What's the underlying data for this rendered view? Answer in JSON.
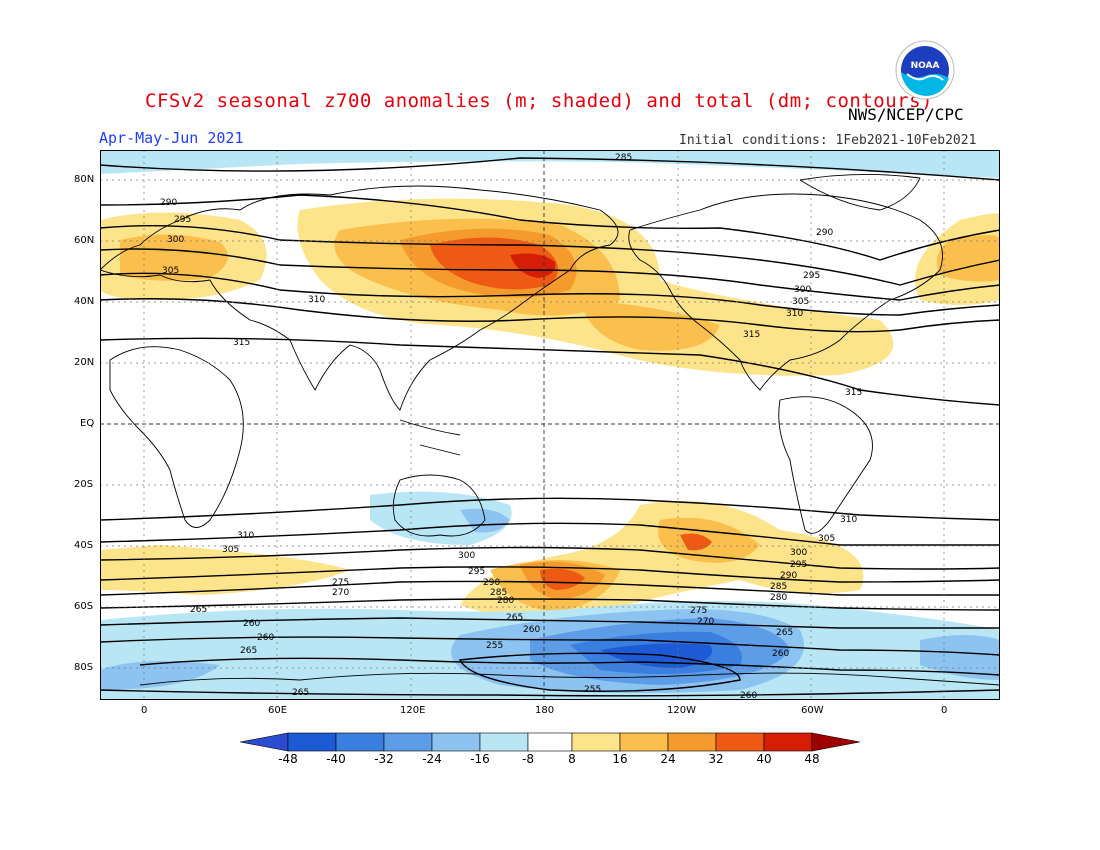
{
  "header": {
    "title": "CFSv2 seasonal z700 anomalies (m; shaded) and total (dm; contours)",
    "agency": "NWS/NCEP/CPC",
    "period": "Apr-May-Jun 2021",
    "initial_conditions": "Initial conditions: 1Feb2021-10Feb2021",
    "logo_text": "NOAA"
  },
  "map": {
    "lat_labels": [
      "80N",
      "60N",
      "40N",
      "20N",
      "EQ",
      "20S",
      "40S",
      "60S",
      "80S"
    ],
    "lon_labels": [
      "0",
      "60E",
      "120E",
      "180",
      "120W",
      "60W",
      "0"
    ],
    "contour_labels": [
      "285",
      "290",
      "295",
      "300",
      "305",
      "310",
      "315",
      "315",
      "310",
      "305",
      "300",
      "295",
      "290",
      "285",
      "280",
      "275",
      "270",
      "265",
      "260",
      "255",
      "290",
      "295",
      "300",
      "305",
      "310",
      "315",
      "310",
      "305",
      "300",
      "295",
      "290",
      "285",
      "280",
      "275",
      "270",
      "265",
      "260",
      "255",
      "265",
      "260",
      "265",
      "260",
      "265",
      "260"
    ]
  },
  "colorbar": {
    "ticks": [
      "-48",
      "-40",
      "-32",
      "-24",
      "-16",
      "-8",
      "8",
      "16",
      "24",
      "32",
      "40",
      "48"
    ],
    "colors": [
      "#1d5bd6",
      "#3a7fe0",
      "#5d9de8",
      "#8cc3f0",
      "#b9e6f5",
      "#ffffff",
      "#fde38a",
      "#fbbf4d",
      "#f59a2d",
      "#ee5a14",
      "#d61e06",
      "#a80000",
      "#2b4bd0",
      "#9c0000"
    ]
  },
  "colors": {
    "title": "#e8000b",
    "period": "#1f3cff",
    "land_outline": "#000000",
    "contour": "#000000"
  }
}
